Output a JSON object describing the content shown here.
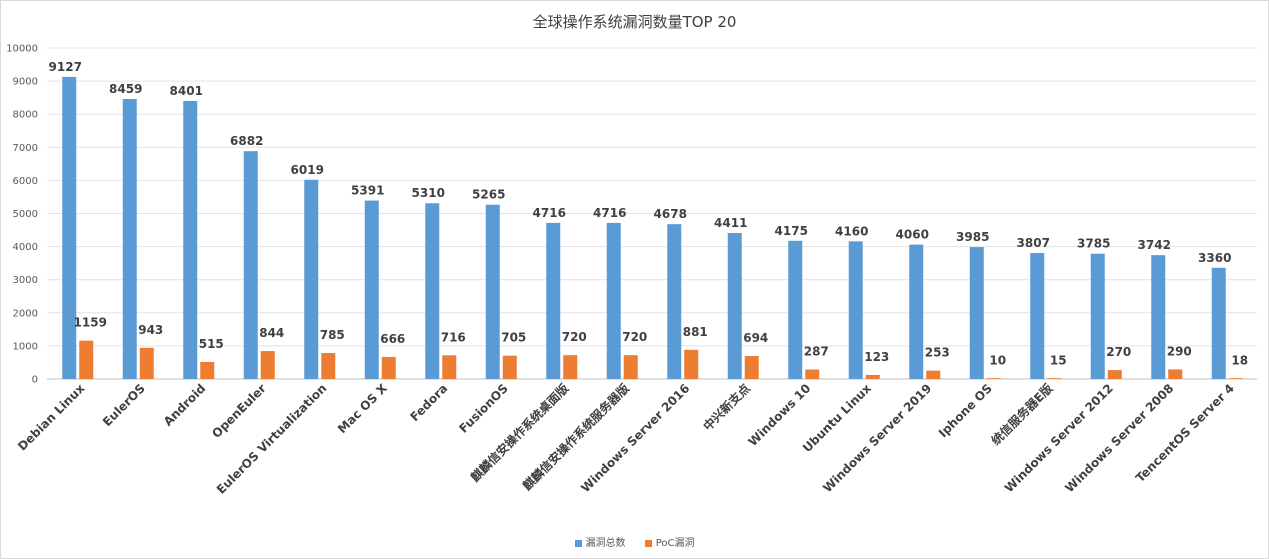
{
  "chart_data": {
    "type": "bar",
    "title": "全球操作系统漏洞数量TOP 20",
    "categories": [
      "Debian Linux",
      "EulerOS",
      "Android",
      "OpenEuler",
      "EulerOS Virtualization",
      "Mac OS X",
      "Fedora",
      "FusionOS",
      "麒麟信安操作系统桌面版",
      "麒麟信安操作系统服务器版",
      "Windows Server 2016",
      "中兴新支点",
      "Windows 10",
      "Ubuntu Linux",
      "Windows Server 2019",
      "Iphone OS",
      "统信服务器E版",
      "Windows Server 2012",
      "Windows Server 2008",
      "TencentOS Server 4"
    ],
    "series": [
      {
        "name": "漏洞总数",
        "color": "#5b9bd5",
        "values": [
          9127,
          8459,
          8401,
          6882,
          6019,
          5391,
          5310,
          5265,
          4716,
          4716,
          4678,
          4411,
          4175,
          4160,
          4060,
          3985,
          3807,
          3785,
          3742,
          3360
        ]
      },
      {
        "name": "PoC漏洞",
        "color": "#ed7d31",
        "values": [
          1159,
          943,
          515,
          844,
          785,
          666,
          716,
          705,
          720,
          720,
          881,
          694,
          287,
          123,
          253,
          10,
          15,
          270,
          290,
          18
        ]
      }
    ],
    "ylim": [
      0,
      10000
    ],
    "yticks": [
      0,
      1000,
      2000,
      3000,
      4000,
      5000,
      6000,
      7000,
      8000,
      9000,
      10000
    ],
    "grid": true,
    "legend": "bottom"
  }
}
